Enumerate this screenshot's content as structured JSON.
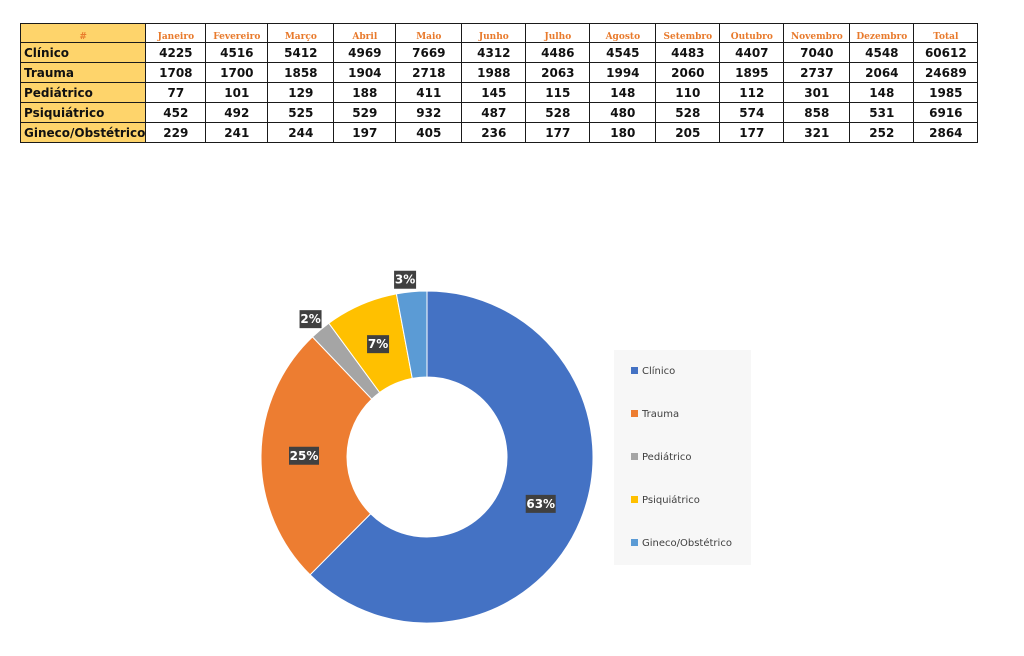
{
  "table": {
    "corner_label": "#",
    "headers": [
      "Janeiro",
      "Fevereiro",
      "Março",
      "Abril",
      "Maio",
      "Junho",
      "Julho",
      "Agosto",
      "Setembro",
      "Outubro",
      "Novembro",
      "Dezembro",
      "Total"
    ],
    "rows": [
      {
        "label": "Clínico",
        "values": [
          "4225",
          "4516",
          "5412",
          "4969",
          "7669",
          "4312",
          "4486",
          "4545",
          "4483",
          "4407",
          "7040",
          "4548",
          "60612"
        ]
      },
      {
        "label": "Trauma",
        "values": [
          "1708",
          "1700",
          "1858",
          "1904",
          "2718",
          "1988",
          "2063",
          "1994",
          "2060",
          "1895",
          "2737",
          "2064",
          "24689"
        ]
      },
      {
        "label": "Pediátrico",
        "values": [
          "77",
          "101",
          "129",
          "188",
          "411",
          "145",
          "115",
          "148",
          "110",
          "112",
          "301",
          "148",
          "1985"
        ]
      },
      {
        "label": "Psiquiátrico",
        "values": [
          "452",
          "492",
          "525",
          "529",
          "932",
          "487",
          "528",
          "480",
          "528",
          "574",
          "858",
          "531",
          "6916"
        ]
      },
      {
        "label": "Gineco/Obstétrico",
        "values": [
          "229",
          "241",
          "244",
          "197",
          "405",
          "236",
          "177",
          "180",
          "205",
          "177",
          "321",
          "252",
          "2864"
        ]
      }
    ]
  },
  "chart_data": {
    "type": "pie",
    "style": "donut",
    "title": "",
    "categories": [
      "Clínico",
      "Trauma",
      "Pediátrico",
      "Psiquiátrico",
      "Gineco/Obstétrico"
    ],
    "values": [
      60612,
      24689,
      1985,
      6916,
      2864
    ],
    "labels": [
      "63%",
      "25%",
      "2%",
      "7%",
      "3%"
    ],
    "colors": [
      "#4472c4",
      "#ed7d31",
      "#a5a5a5",
      "#ffc000",
      "#5b9bd5"
    ],
    "legend_position": "right"
  }
}
